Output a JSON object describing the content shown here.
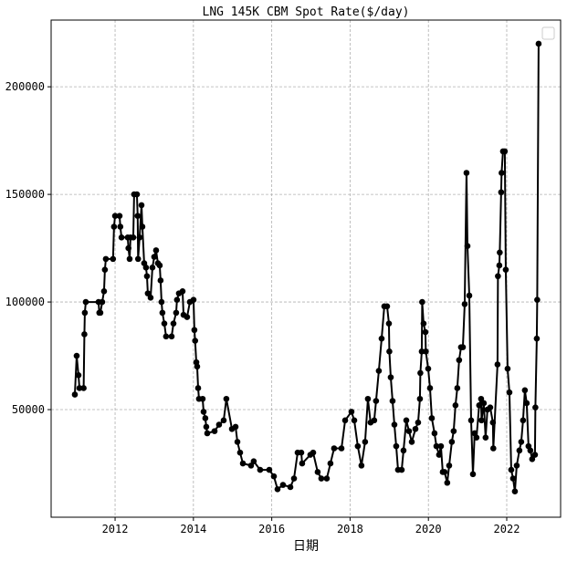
{
  "chart_data": {
    "type": "line",
    "title": "LNG 145K CBM Spot Rate($/day)",
    "xlabel": "日期",
    "ylabel": "",
    "xlim": [
      "2010-05-15",
      "2023-05-18"
    ],
    "ylim": [
      0,
      231000
    ],
    "xticks": [
      "2012",
      "2014",
      "2016",
      "2018",
      "2020",
      "2022"
    ],
    "yticks": [
      50000,
      100000,
      150000,
      200000
    ],
    "grid": true,
    "legend": "top-right",
    "markers": true,
    "color": "#000000",
    "series": [
      {
        "x": [
          "2010-12-22",
          "2011-01-08",
          "2011-01-25",
          "2011-02-03",
          "2011-03-14",
          "2011-03-21",
          "2011-03-25",
          "2011-04-03",
          "2011-07-31",
          "2011-08-07",
          "2011-08-17",
          "2011-09-03",
          "2011-09-20",
          "2011-09-28",
          "2011-10-07",
          "2011-12-13",
          "2011-12-22",
          "2012-01-01",
          "2012-02-12",
          "2012-02-19",
          "2012-03-01",
          "2012-04-28",
          "2012-05-05",
          "2012-05-16",
          "2012-05-24",
          "2012-06-19",
          "2012-06-27",
          "2012-07-23",
          "2012-07-30",
          "2012-08-03",
          "2012-08-17",
          "2012-09-04",
          "2012-09-12",
          "2012-09-29",
          "2012-10-16",
          "2012-10-25",
          "2012-11-02",
          "2012-11-28",
          "2012-12-15",
          "2013-01-01",
          "2013-01-18",
          "2013-02-04",
          "2013-02-21",
          "2013-03-01",
          "2013-03-10",
          "2013-03-18",
          "2013-04-05",
          "2013-04-21",
          "2013-06-12",
          "2013-06-29",
          "2013-07-24",
          "2013-08-01",
          "2013-08-19",
          "2013-09-22",
          "2013-10-01",
          "2013-11-03",
          "2013-11-29",
          "2014-01-02",
          "2014-01-10",
          "2014-01-17",
          "2014-01-28",
          "2014-02-05",
          "2014-02-14",
          "2014-02-22",
          "2014-03-28",
          "2014-04-06",
          "2014-04-22",
          "2014-05-01",
          "2014-05-10",
          "2014-07-17",
          "2014-08-28",
          "2014-10-10",
          "2014-11-04",
          "2014-12-26",
          "2015-01-29",
          "2015-02-15",
          "2015-03-12",
          "2015-04-07",
          "2015-06-22",
          "2015-07-17",
          "2015-09-15",
          "2015-12-09",
          "2016-01-21",
          "2016-02-24",
          "2016-04-15",
          "2016-06-23",
          "2016-07-27",
          "2016-08-30",
          "2016-10-03",
          "2016-10-11",
          "2016-12-27",
          "2017-01-22",
          "2017-03-05",
          "2017-04-08",
          "2017-05-29",
          "2017-07-02",
          "2017-08-05",
          "2017-10-13",
          "2017-11-16",
          "2018-01-14",
          "2018-02-09",
          "2018-03-14",
          "2018-04-17",
          "2018-05-21",
          "2018-06-16",
          "2018-07-11",
          "2018-08-14",
          "2018-08-31",
          "2018-09-26",
          "2018-10-22",
          "2018-11-16",
          "2018-12-12",
          "2018-12-29",
          "2019-01-02",
          "2019-01-15",
          "2019-02-01",
          "2019-02-18",
          "2019-03-07",
          "2019-03-24",
          "2019-04-27",
          "2019-05-14",
          "2019-06-09",
          "2019-07-04",
          "2019-07-30",
          "2019-09-02",
          "2019-09-27",
          "2019-10-14",
          "2019-10-18",
          "2019-10-31",
          "2019-11-04",
          "2019-11-17",
          "2019-12-04",
          "2019-12-08",
          "2019-12-30",
          "2020-01-16",
          "2020-02-02",
          "2020-02-27",
          "2020-03-16",
          "2020-04-10",
          "2020-04-27",
          "2020-05-14",
          "2020-05-31",
          "2020-06-25",
          "2020-07-13",
          "2020-08-07",
          "2020-08-24",
          "2020-09-10",
          "2020-09-27",
          "2020-10-14",
          "2020-11-01",
          "2020-11-18",
          "2020-12-05",
          "2020-12-22",
          "2020-12-31",
          "2021-01-17",
          "2021-02-03",
          "2021-02-20",
          "2021-03-08",
          "2021-03-25",
          "2021-04-19",
          "2021-05-07",
          "2021-05-11",
          "2021-06-01",
          "2021-06-18",
          "2021-07-05",
          "2021-07-31",
          "2021-08-25",
          "2021-08-29",
          "2021-10-07",
          "2021-10-11",
          "2021-10-24",
          "2021-10-28",
          "2021-11-10",
          "2021-11-14",
          "2021-11-27",
          "2021-12-14",
          "2021-12-23",
          "2022-01-09",
          "2022-01-26",
          "2022-02-12",
          "2022-03-01",
          "2022-03-18",
          "2022-04-04",
          "2022-04-29",
          "2022-05-16",
          "2022-06-02",
          "2022-06-19",
          "2022-07-06",
          "2022-07-23",
          "2022-08-09",
          "2022-08-26",
          "2022-09-21",
          "2022-09-25",
          "2022-10-08",
          "2022-10-12",
          "2022-10-25"
        ],
        "y": [
          57000,
          75000,
          66000,
          60000,
          60000,
          85000,
          95000,
          100000,
          100000,
          95000,
          95000,
          100000,
          105000,
          115000,
          120000,
          120000,
          135000,
          140000,
          140000,
          135000,
          130000,
          130000,
          125000,
          120000,
          130000,
          130000,
          150000,
          150000,
          140000,
          120000,
          130000,
          145000,
          135000,
          118000,
          116000,
          112000,
          104000,
          102000,
          116000,
          121000,
          124000,
          118000,
          117000,
          110000,
          100000,
          95000,
          90000,
          84000,
          84000,
          90000,
          95000,
          101000,
          104000,
          105000,
          94000,
          93000,
          100000,
          101000,
          87000,
          82000,
          72000,
          70000,
          60000,
          55000,
          55000,
          49000,
          46000,
          42000,
          39000,
          40000,
          43000,
          45000,
          55000,
          41000,
          42000,
          35000,
          30000,
          25000,
          24000,
          26000,
          22000,
          22000,
          19000,
          13000,
          15000,
          14000,
          18000,
          30000,
          30000,
          25000,
          29000,
          30000,
          21000,
          18000,
          18000,
          25000,
          32000,
          32000,
          45000,
          49000,
          45000,
          33000,
          24000,
          35000,
          55000,
          44000,
          45000,
          54000,
          68000,
          83000,
          98000,
          98000,
          90000,
          77000,
          65000,
          54000,
          43000,
          33000,
          22000,
          22000,
          31000,
          45000,
          40000,
          35000,
          41000,
          44000,
          55000,
          67000,
          77000,
          100000,
          90000,
          86000,
          77000,
          69000,
          60000,
          46000,
          39000,
          33000,
          29000,
          33000,
          21000,
          21000,
          16000,
          24000,
          35000,
          40000,
          52000,
          60000,
          73000,
          79000,
          79000,
          99000,
          160000,
          126000,
          103000,
          45000,
          20000,
          39000,
          37000,
          52000,
          55000,
          45000,
          53000,
          37000,
          50000,
          51000,
          44000,
          32000,
          71000,
          112000,
          117000,
          123000,
          151000,
          160000,
          170000,
          170000,
          115000,
          69000,
          58000,
          22000,
          18000,
          12000,
          24000,
          31000,
          35000,
          45000,
          59000,
          53000,
          33000,
          31000,
          27000,
          29000,
          51000,
          83000,
          101000,
          220000
        ]
      }
    ]
  }
}
